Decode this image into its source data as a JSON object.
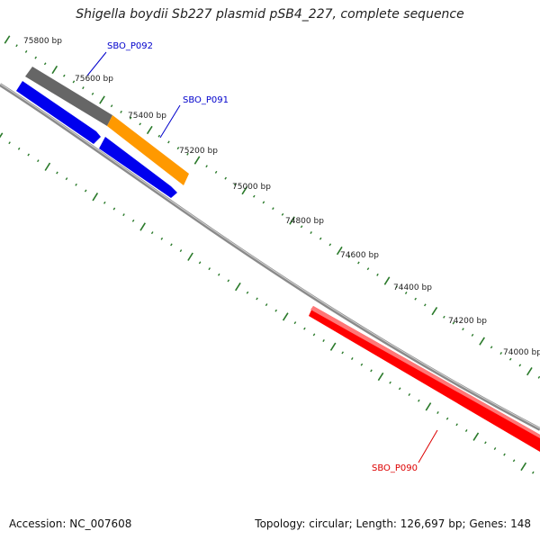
{
  "title": "Shigella boydii Sb227 plasmid pSB4_227, complete sequence",
  "footer": {
    "accession": "Accession: NC_007608",
    "summary": "Topology: circular; Length: 126,697 bp; Genes: 148"
  },
  "ticks": [
    {
      "label": "75800 bp"
    },
    {
      "label": "75600 bp"
    },
    {
      "label": "75400 bp"
    },
    {
      "label": "75200 bp"
    },
    {
      "label": "75000 bp"
    },
    {
      "label": "74800 bp"
    },
    {
      "label": "74600 bp"
    },
    {
      "label": "74400 bp"
    },
    {
      "label": "74200 bp"
    },
    {
      "label": "74000 bp"
    }
  ],
  "genes": [
    {
      "name": "SBO_P092",
      "color": "#0000cc"
    },
    {
      "name": "SBO_P091",
      "color": "#0000cc"
    },
    {
      "name": "SBO_P090",
      "color": "#dd0000"
    }
  ],
  "colors": {
    "backbone": "#8a8a8a",
    "tick_marks": "#2a7a2a",
    "feature_gray": "#666666",
    "feature_orange": "#ff9900",
    "feature_blue": "#0000ee",
    "feature_red": "#ff0000"
  }
}
